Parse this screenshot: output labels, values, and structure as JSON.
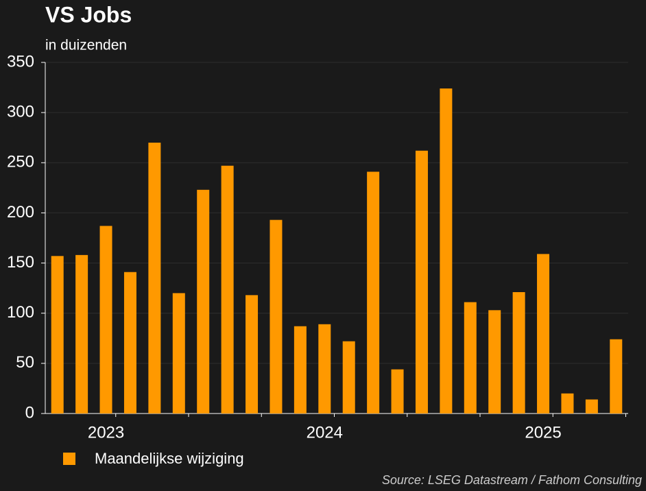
{
  "chart_data": {
    "type": "bar",
    "title": "VS Jobs",
    "subtitle": "in duizenden",
    "categories": [
      null,
      null,
      "2023",
      null,
      null,
      null,
      null,
      null,
      null,
      null,
      null,
      "2024",
      null,
      null,
      null,
      null,
      null,
      null,
      null,
      null,
      "2025",
      null,
      null,
      null
    ],
    "series": [
      {
        "name": "Maandelijkse wijziging",
        "color": "#ff9900",
        "values": [
          157,
          158,
          187,
          141,
          270,
          120,
          223,
          247,
          118,
          193,
          87,
          89,
          72,
          241,
          44,
          262,
          324,
          111,
          103,
          121,
          159,
          20,
          14,
          74
        ]
      }
    ],
    "ylim": [
      0,
      350
    ],
    "yticks": [
      0,
      50,
      100,
      150,
      200,
      250,
      300,
      350
    ],
    "grid": true,
    "source": "Source: LSEG Datastream / Fathom Consulting"
  }
}
